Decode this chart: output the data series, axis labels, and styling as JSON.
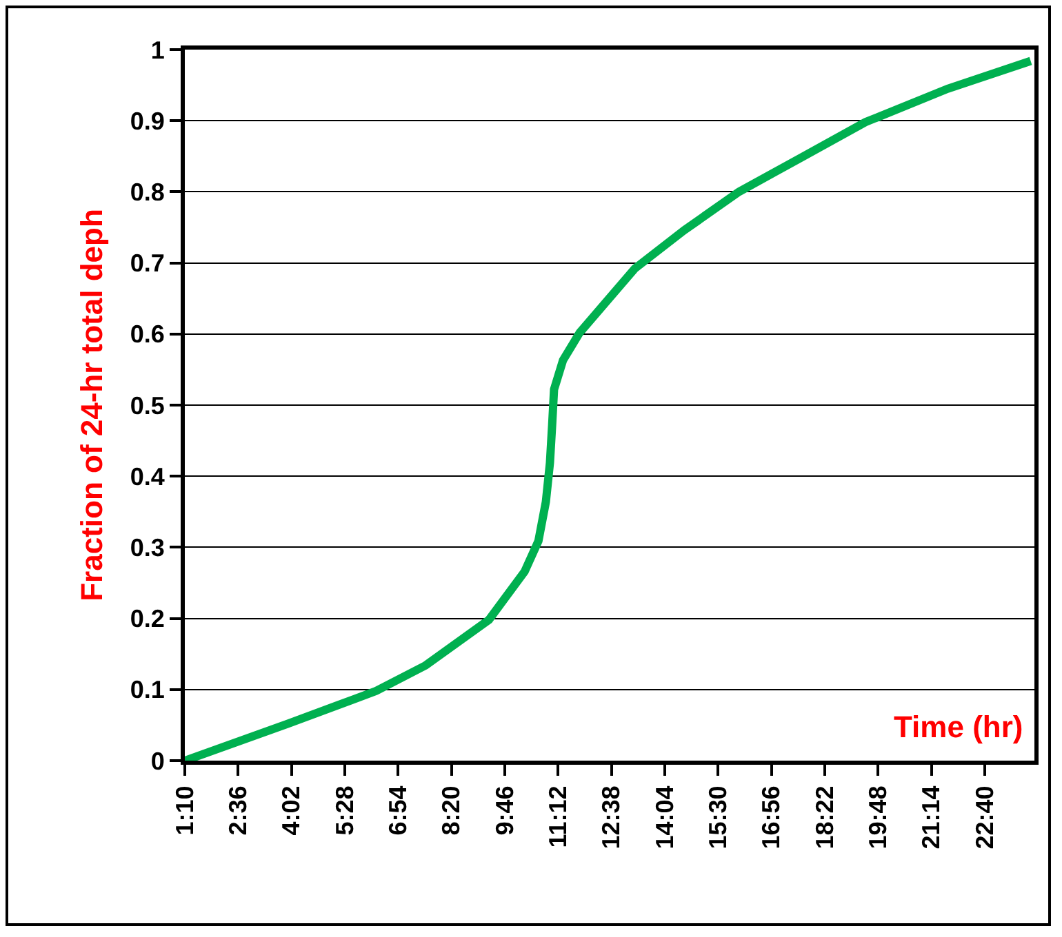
{
  "chart_data": {
    "type": "line",
    "xlabel": "Time (hr)",
    "ylabel": "Fraction of 24-hr total deph",
    "series": [
      {
        "color": "#00b050",
        "x": [
          1.17,
          3.94,
          6.31,
          7.64,
          9.34,
          10.3,
          10.67,
          10.87,
          10.98,
          11.04,
          11.09,
          11.33,
          11.78,
          13.26,
          14.59,
          16.06,
          17.69,
          19.46,
          21.67,
          23.9
        ],
        "values": [
          0,
          0.052,
          0.098,
          0.134,
          0.198,
          0.266,
          0.309,
          0.364,
          0.419,
          0.473,
          0.522,
          0.563,
          0.602,
          0.692,
          0.746,
          0.8,
          0.847,
          0.898,
          0.945,
          0.984
        ]
      }
    ],
    "xlim": [
      1.1667,
      24
    ],
    "xticks": [
      {
        "value": 1.1667,
        "label": "1:10"
      },
      {
        "value": 2.6,
        "label": "2:36"
      },
      {
        "value": 4.0333,
        "label": "4:02"
      },
      {
        "value": 5.4667,
        "label": "5:28"
      },
      {
        "value": 6.9,
        "label": "6:54"
      },
      {
        "value": 8.3333,
        "label": "8:20"
      },
      {
        "value": 9.7667,
        "label": "9:46"
      },
      {
        "value": 11.2,
        "label": "11:12"
      },
      {
        "value": 12.6333,
        "label": "12:38"
      },
      {
        "value": 14.0667,
        "label": "14:04"
      },
      {
        "value": 15.5,
        "label": "15:30"
      },
      {
        "value": 16.9333,
        "label": "16:56"
      },
      {
        "value": 18.3667,
        "label": "18:22"
      },
      {
        "value": 19.8,
        "label": "19:48"
      },
      {
        "value": 21.2333,
        "label": "21:14"
      },
      {
        "value": 22.6667,
        "label": "22:40"
      }
    ],
    "ylim": [
      0,
      1
    ],
    "yticks": [
      0,
      0.1,
      0.2,
      0.3,
      0.4,
      0.5,
      0.6,
      0.7,
      0.8,
      0.9,
      1
    ],
    "grid": "y",
    "marker": "none",
    "line_style": "solid"
  }
}
